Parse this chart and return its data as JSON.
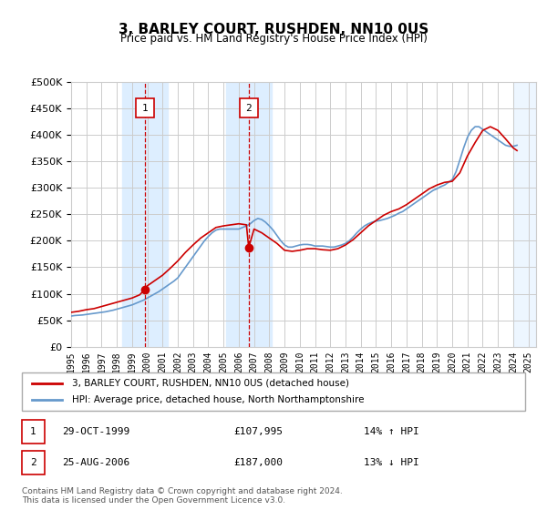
{
  "title": "3, BARLEY COURT, RUSHDEN, NN10 0US",
  "subtitle": "Price paid vs. HM Land Registry's House Price Index (HPI)",
  "footer": "Contains HM Land Registry data © Crown copyright and database right 2024.\nThis data is licensed under the Open Government Licence v3.0.",
  "legend_line1": "3, BARLEY COURT, RUSHDEN, NN10 0US (detached house)",
  "legend_line2": "HPI: Average price, detached house, North Northamptonshire",
  "transaction1": {
    "num": 1,
    "date": "29-OCT-1999",
    "price": "£107,995",
    "hpi": "14% ↑ HPI",
    "year": 1999.83
  },
  "transaction2": {
    "num": 2,
    "date": "25-AUG-2006",
    "price": "£187,000",
    "hpi": "13% ↓ HPI",
    "year": 2006.65
  },
  "ylim": [
    0,
    500000
  ],
  "yticks": [
    0,
    50000,
    100000,
    150000,
    200000,
    250000,
    300000,
    350000,
    400000,
    450000,
    500000
  ],
  "xlim_start": 1995.0,
  "xlim_end": 2025.5,
  "line_color_red": "#cc0000",
  "line_color_blue": "#6699cc",
  "shade_color": "#ddeeff",
  "vline_color": "#cc0000",
  "grid_color": "#cccccc",
  "bg_color": "#ffffff",
  "plot_bg": "#ffffff",
  "marker_box_color": "#cc0000",
  "hpi_years": [
    1995.0,
    1995.25,
    1995.5,
    1995.75,
    1996.0,
    1996.25,
    1996.5,
    1996.75,
    1997.0,
    1997.25,
    1997.5,
    1997.75,
    1998.0,
    1998.25,
    1998.5,
    1998.75,
    1999.0,
    1999.25,
    1999.5,
    1999.75,
    2000.0,
    2000.25,
    2000.5,
    2000.75,
    2001.0,
    2001.25,
    2001.5,
    2001.75,
    2002.0,
    2002.25,
    2002.5,
    2002.75,
    2003.0,
    2003.25,
    2003.5,
    2003.75,
    2004.0,
    2004.25,
    2004.5,
    2004.75,
    2005.0,
    2005.25,
    2005.5,
    2005.75,
    2006.0,
    2006.25,
    2006.5,
    2006.75,
    2007.0,
    2007.25,
    2007.5,
    2007.75,
    2008.0,
    2008.25,
    2008.5,
    2008.75,
    2009.0,
    2009.25,
    2009.5,
    2009.75,
    2010.0,
    2010.25,
    2010.5,
    2010.75,
    2011.0,
    2011.25,
    2011.5,
    2011.75,
    2012.0,
    2012.25,
    2012.5,
    2012.75,
    2013.0,
    2013.25,
    2013.5,
    2013.75,
    2014.0,
    2014.25,
    2014.5,
    2014.75,
    2015.0,
    2015.25,
    2015.5,
    2015.75,
    2016.0,
    2016.25,
    2016.5,
    2016.75,
    2017.0,
    2017.25,
    2017.5,
    2017.75,
    2018.0,
    2018.25,
    2018.5,
    2018.75,
    2019.0,
    2019.25,
    2019.5,
    2019.75,
    2020.0,
    2020.25,
    2020.5,
    2020.75,
    2021.0,
    2021.25,
    2021.5,
    2021.75,
    2022.0,
    2022.25,
    2022.5,
    2022.75,
    2023.0,
    2023.25,
    2023.5,
    2023.75,
    2024.0,
    2024.25
  ],
  "hpi_values": [
    58000,
    59000,
    59500,
    60000,
    61000,
    62000,
    63000,
    64000,
    65000,
    66000,
    67500,
    69000,
    71000,
    73000,
    75000,
    77000,
    79000,
    82000,
    85000,
    88000,
    92000,
    96000,
    100000,
    104000,
    109000,
    114000,
    119000,
    124000,
    130000,
    140000,
    150000,
    160000,
    170000,
    180000,
    190000,
    200000,
    208000,
    215000,
    220000,
    222000,
    222000,
    222000,
    222000,
    222000,
    222000,
    225000,
    228000,
    232000,
    238000,
    242000,
    240000,
    235000,
    228000,
    220000,
    210000,
    200000,
    192000,
    188000,
    188000,
    190000,
    192000,
    193000,
    193000,
    192000,
    190000,
    190000,
    190000,
    189000,
    188000,
    188000,
    190000,
    192000,
    195000,
    200000,
    207000,
    215000,
    222000,
    228000,
    232000,
    235000,
    237000,
    238000,
    240000,
    242000,
    245000,
    248000,
    252000,
    255000,
    260000,
    265000,
    270000,
    275000,
    280000,
    285000,
    290000,
    295000,
    298000,
    302000,
    305000,
    310000,
    315000,
    330000,
    352000,
    375000,
    395000,
    408000,
    415000,
    415000,
    410000,
    405000,
    400000,
    395000,
    390000,
    385000,
    380000,
    378000,
    378000,
    380000
  ],
  "sold_years": [
    1995.0,
    1995.5,
    1996.0,
    1996.5,
    1997.0,
    1997.5,
    1998.0,
    1998.5,
    1999.0,
    1999.5,
    1999.83,
    2000.0,
    2000.5,
    2001.0,
    2001.5,
    2002.0,
    2002.5,
    2003.0,
    2003.5,
    2004.0,
    2004.5,
    2005.0,
    2005.5,
    2006.0,
    2006.5,
    2006.65,
    2007.0,
    2007.5,
    2008.0,
    2008.5,
    2009.0,
    2009.5,
    2010.0,
    2010.5,
    2011.0,
    2011.5,
    2012.0,
    2012.5,
    2013.0,
    2013.5,
    2014.0,
    2014.5,
    2015.0,
    2015.5,
    2016.0,
    2016.5,
    2017.0,
    2017.5,
    2018.0,
    2018.5,
    2019.0,
    2019.5,
    2020.0,
    2020.5,
    2021.0,
    2021.5,
    2022.0,
    2022.5,
    2023.0,
    2023.5,
    2024.0,
    2024.25
  ],
  "sold_values": [
    65000,
    67000,
    70000,
    72000,
    76000,
    80000,
    84000,
    88000,
    92000,
    98000,
    107995,
    115000,
    125000,
    135000,
    148000,
    162000,
    178000,
    192000,
    205000,
    215000,
    225000,
    228000,
    230000,
    232000,
    230000,
    187000,
    222000,
    215000,
    205000,
    195000,
    182000,
    180000,
    182000,
    185000,
    185000,
    183000,
    182000,
    185000,
    192000,
    202000,
    215000,
    228000,
    238000,
    248000,
    255000,
    260000,
    268000,
    278000,
    288000,
    298000,
    305000,
    310000,
    312000,
    328000,
    360000,
    385000,
    408000,
    415000,
    408000,
    392000,
    375000,
    370000
  ],
  "xtick_years": [
    1995,
    1996,
    1997,
    1998,
    1999,
    2000,
    2001,
    2002,
    2003,
    2004,
    2005,
    2006,
    2007,
    2008,
    2009,
    2010,
    2011,
    2012,
    2013,
    2014,
    2015,
    2016,
    2017,
    2018,
    2019,
    2020,
    2021,
    2022,
    2023,
    2024,
    2025
  ]
}
